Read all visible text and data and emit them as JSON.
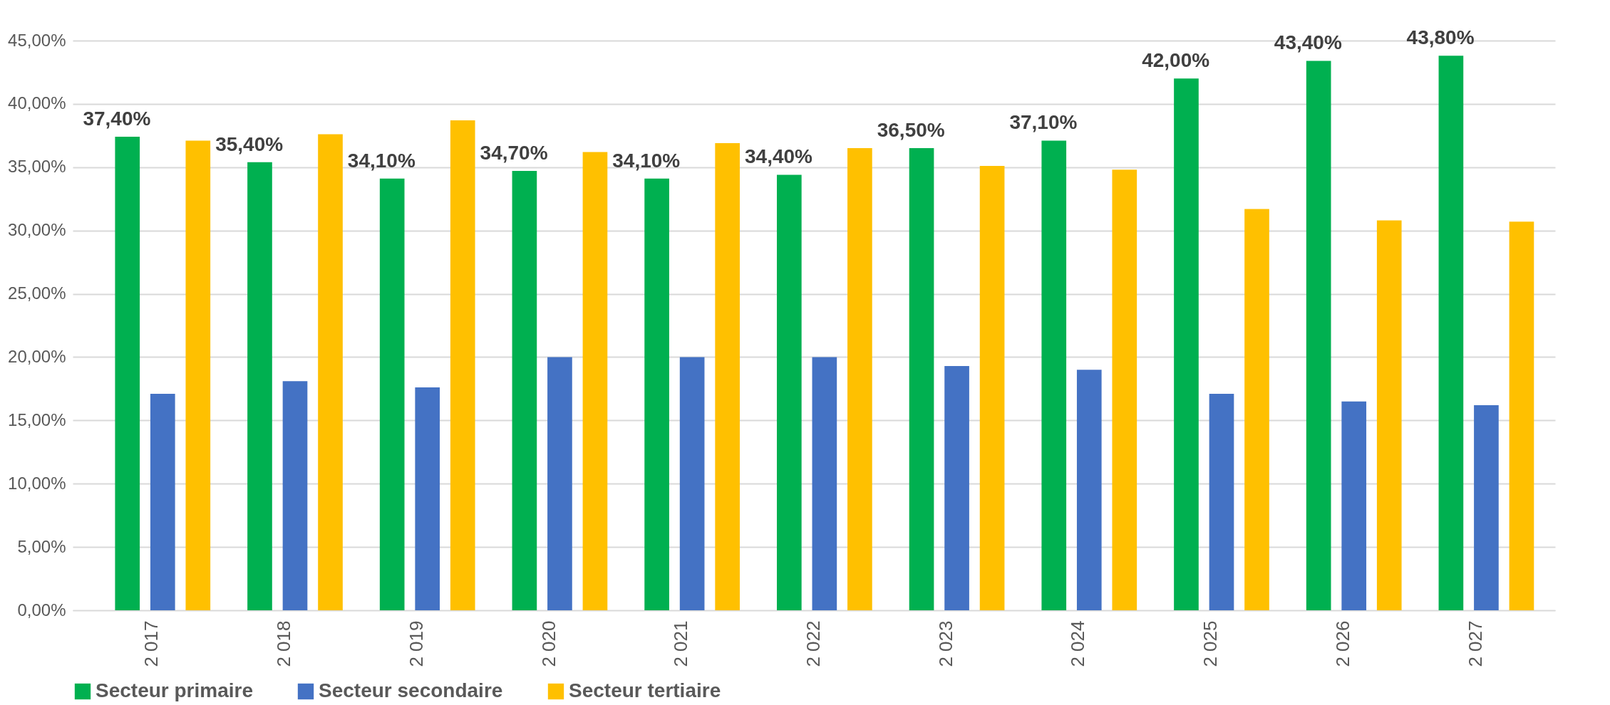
{
  "chart_data": {
    "type": "bar",
    "categories": [
      "2 017",
      "2 018",
      "2 019",
      "2 020",
      "2 021",
      "2 022",
      "2 023",
      "2 024",
      "2 025",
      "2 026",
      "2 027"
    ],
    "series": [
      {
        "name": "Secteur primaire",
        "color": "#00b050",
        "values": [
          37.4,
          35.4,
          34.1,
          34.7,
          34.1,
          34.4,
          36.5,
          37.1,
          42.0,
          43.4,
          43.8
        ],
        "value_labels": [
          "37,40%",
          "35,40%",
          "34,10%",
          "34,70%",
          "34,10%",
          "34,40%",
          "36,50%",
          "37,10%",
          "42,00%",
          "43,40%",
          "43,80%"
        ]
      },
      {
        "name": "Secteur secondaire",
        "color": "#4472c4",
        "values": [
          17.1,
          18.1,
          17.6,
          20.0,
          20.0,
          20.0,
          19.3,
          19.0,
          17.1,
          16.5,
          16.2
        ]
      },
      {
        "name": "Secteur tertiaire",
        "color": "#ffc000",
        "values": [
          37.1,
          37.6,
          38.7,
          36.2,
          36.9,
          36.5,
          35.1,
          34.8,
          31.7,
          30.8,
          30.7
        ]
      }
    ],
    "ylim": [
      0,
      45
    ],
    "yticks": [
      {
        "value": 0,
        "label": "0,00%"
      },
      {
        "value": 5,
        "label": "5,00%"
      },
      {
        "value": 10,
        "label": "10,00%"
      },
      {
        "value": 15,
        "label": "15,00%"
      },
      {
        "value": 20,
        "label": "20,00%"
      },
      {
        "value": 25,
        "label": "25,00%"
      },
      {
        "value": 30,
        "label": "30,00%"
      },
      {
        "value": 35,
        "label": "35,00%"
      },
      {
        "value": 40,
        "label": "40,00%"
      },
      {
        "value": 45,
        "label": "45,00%"
      }
    ],
    "grid": "y",
    "legend": "bottom"
  }
}
